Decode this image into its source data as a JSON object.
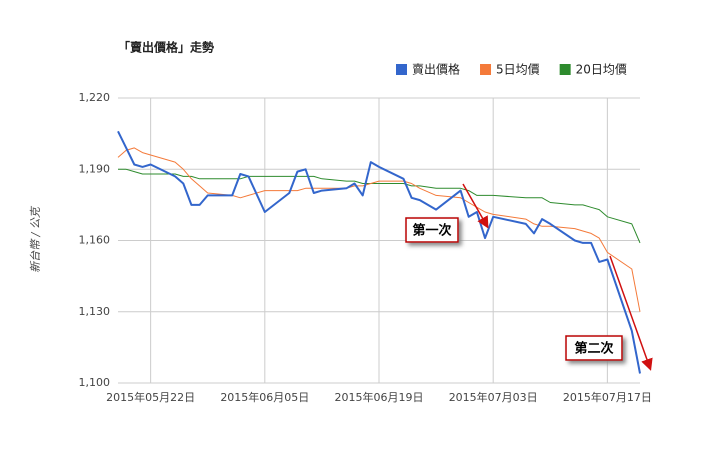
{
  "chart_data": {
    "type": "line",
    "title": "「賣出價格」走勢",
    "y_label": "新台幣 / 公克",
    "x": [
      "2015-05-18",
      "2015-05-19",
      "2015-05-20",
      "2015-05-21",
      "2015-05-22",
      "2015-05-25",
      "2015-05-26",
      "2015-05-27",
      "2015-05-28",
      "2015-05-29",
      "2015-06-01",
      "2015-06-02",
      "2015-06-03",
      "2015-06-05",
      "2015-06-08",
      "2015-06-09",
      "2015-06-10",
      "2015-06-11",
      "2015-06-12",
      "2015-06-15",
      "2015-06-16",
      "2015-06-17",
      "2015-06-18",
      "2015-06-19",
      "2015-06-22",
      "2015-06-23",
      "2015-06-24",
      "2015-06-26",
      "2015-06-29",
      "2015-06-30",
      "2015-07-01",
      "2015-07-02",
      "2015-07-03",
      "2015-07-07",
      "2015-07-08",
      "2015-07-09",
      "2015-07-10",
      "2015-07-13",
      "2015-07-14",
      "2015-07-15",
      "2015-07-16",
      "2015-07-17",
      "2015-07-20",
      "2015-07-21"
    ],
    "series": [
      {
        "name": "賣出價格",
        "color": "#3366cc",
        "width": 2,
        "values": [
          1206,
          1199,
          1192,
          1191,
          1192,
          1187,
          1184,
          1175,
          1175,
          1179,
          1179,
          1188,
          1187,
          1172,
          1180,
          1189,
          1190,
          1180,
          1181,
          1182,
          1184,
          1179,
          1193,
          1191,
          1186,
          1178,
          1177,
          1173,
          1181,
          1170,
          1172,
          1161,
          1170,
          1167,
          1163,
          1169,
          1167,
          1160,
          1159,
          1159,
          1151,
          1152,
          1122,
          1104
        ]
      },
      {
        "name": "5日均價",
        "color": "#f47a3a",
        "width": 1,
        "values": [
          1195,
          1198,
          1199,
          1197,
          1196,
          1193,
          1190,
          1186,
          1183,
          1180,
          1179,
          1178,
          1179,
          1181,
          1181,
          1181,
          1182,
          1182,
          1182,
          1182,
          1183,
          1183,
          1184,
          1185,
          1185,
          1184,
          1182,
          1179,
          1178,
          1176,
          1174,
          1172,
          1171,
          1169,
          1167,
          1166,
          1166,
          1165,
          1164,
          1163,
          1161,
          1155,
          1148,
          1130
        ]
      },
      {
        "name": "20日均價",
        "color": "#2e8b2e",
        "width": 1,
        "values": [
          1190,
          1190,
          1189,
          1188,
          1188,
          1188,
          1187,
          1187,
          1186,
          1186,
          1186,
          1186,
          1187,
          1187,
          1187,
          1187,
          1187,
          1187,
          1186,
          1185,
          1185,
          1184,
          1184,
          1184,
          1184,
          1183,
          1183,
          1182,
          1182,
          1181,
          1179,
          1179,
          1179,
          1178,
          1178,
          1178,
          1176,
          1175,
          1175,
          1174,
          1173,
          1170,
          1167,
          1159
        ]
      }
    ],
    "xlim": [
      "2015-05-18",
      "2015-07-21"
    ],
    "xticks": [
      {
        "value": "2015-05-22",
        "label": "2015年05月22日"
      },
      {
        "value": "2015-06-05",
        "label": "2015年06月05日"
      },
      {
        "value": "2015-06-19",
        "label": "2015年06月19日"
      },
      {
        "value": "2015-07-03",
        "label": "2015年07月03日"
      },
      {
        "value": "2015-07-17",
        "label": "2015年07月17日"
      }
    ],
    "ylim": [
      1100,
      1220
    ],
    "yticks": [
      {
        "value": 1100,
        "label": "1,100"
      },
      {
        "value": 1130,
        "label": "1,130"
      },
      {
        "value": 1160,
        "label": "1,160"
      },
      {
        "value": 1190,
        "label": "1,190"
      },
      {
        "value": 1220,
        "label": "1,220"
      }
    ],
    "grid": true,
    "legend": "top-right",
    "annotations": [
      "第一次",
      "第二次"
    ]
  }
}
